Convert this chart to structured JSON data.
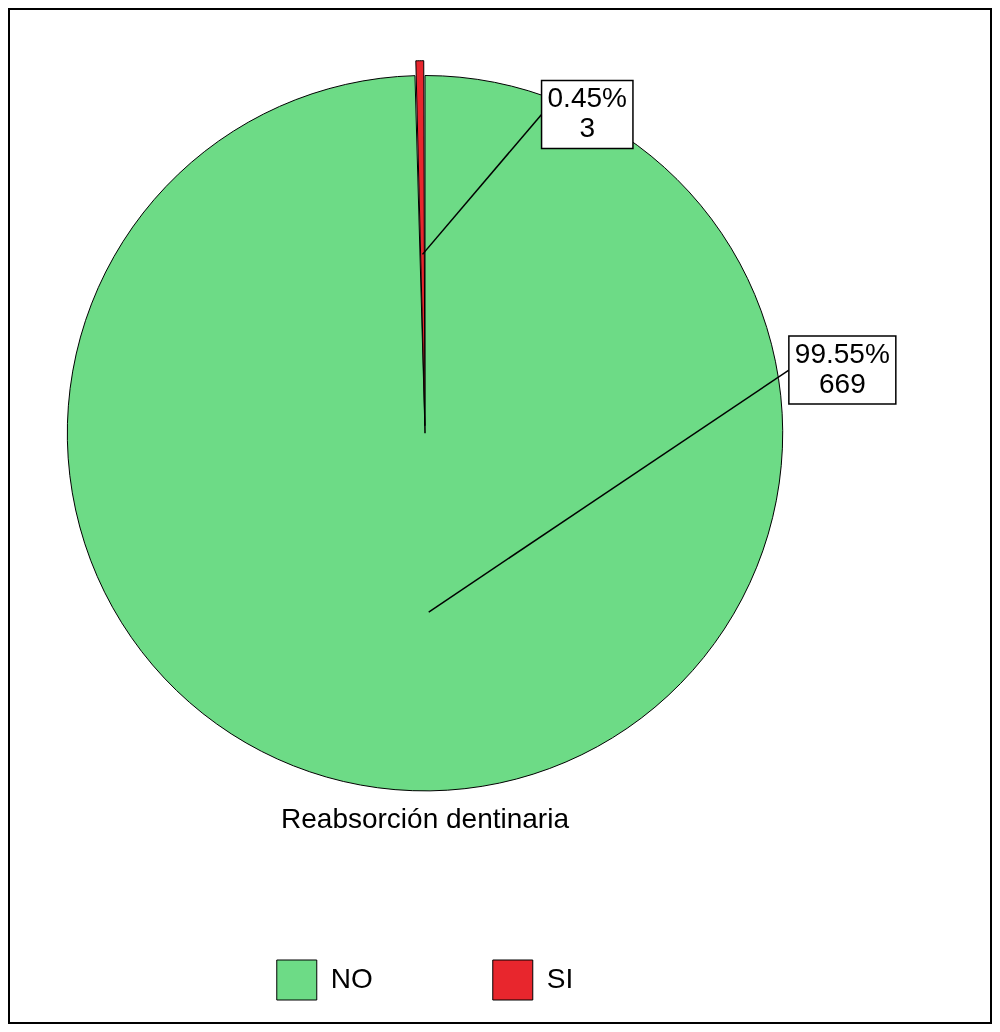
{
  "chart_data": {
    "type": "pie",
    "legend_title": "Reabsorción dentinaria",
    "categories": [
      "NO",
      "SI"
    ],
    "values": [
      669,
      3
    ],
    "colors": [
      "#6ddb86",
      "#e8262d"
    ],
    "value_labels": [
      "99.55%\n669",
      "0.45%\n3"
    ],
    "legend": "bottom"
  }
}
